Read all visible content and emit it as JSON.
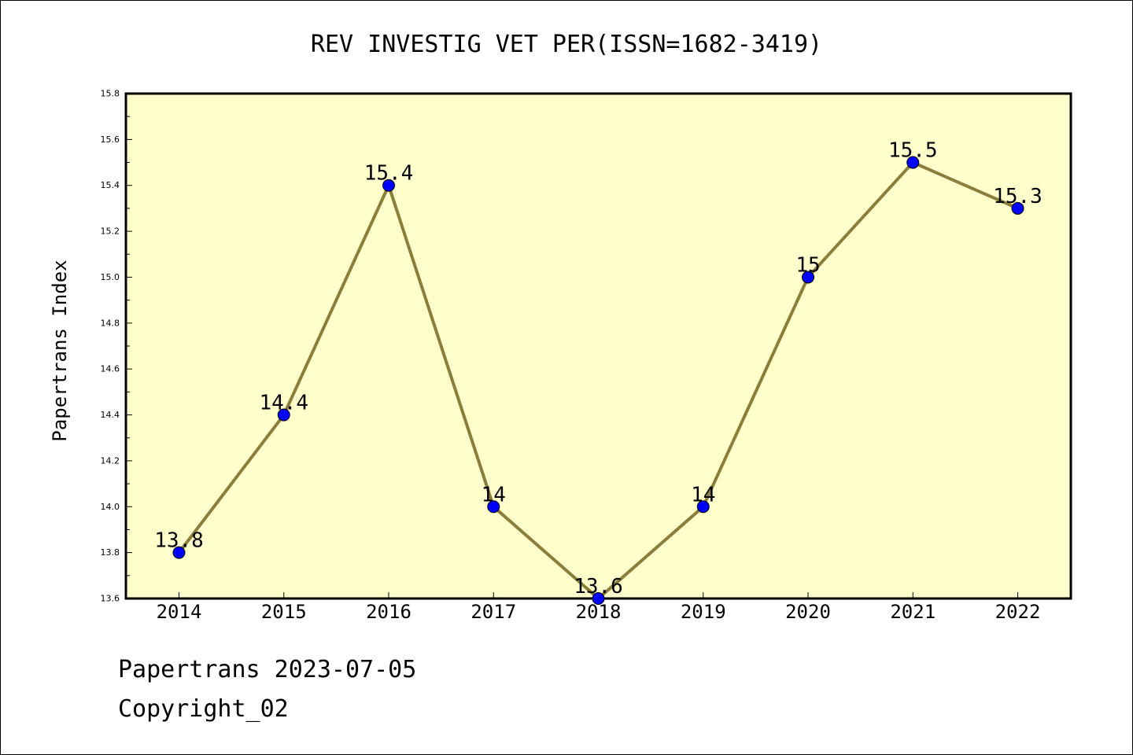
{
  "chart_data": {
    "type": "line",
    "title": "REV INVESTIG VET PER(ISSN=1682-3419)",
    "ylabel": "Papertrans Index",
    "xlabel": "",
    "categories": [
      "2014",
      "2015",
      "2016",
      "2017",
      "2018",
      "2019",
      "2020",
      "2021",
      "2022"
    ],
    "series": [
      {
        "values": [
          13.8,
          14.4,
          15.4,
          14.0,
          13.6,
          14.0,
          15.0,
          15.5,
          15.3
        ],
        "labels": [
          "13.8",
          "14.4",
          "15.4",
          "14",
          "13.6",
          "14",
          "15",
          "15.5",
          "15.3"
        ]
      }
    ],
    "ylim": [
      13.6,
      15.8
    ],
    "yticks": [
      "13.6",
      "13.8",
      "14.0",
      "14.2",
      "14.4",
      "14.6",
      "14.8",
      "15.0",
      "15.2",
      "15.4",
      "15.6",
      "15.8"
    ],
    "grid": false,
    "legend": "none",
    "colors": {
      "plot_background": "#ffffcc",
      "line": "#8b7d3a",
      "marker": "#0000ff"
    }
  },
  "footer": {
    "date_line": "Papertrans 2023-07-05",
    "copyright_line": "Copyright_02"
  }
}
